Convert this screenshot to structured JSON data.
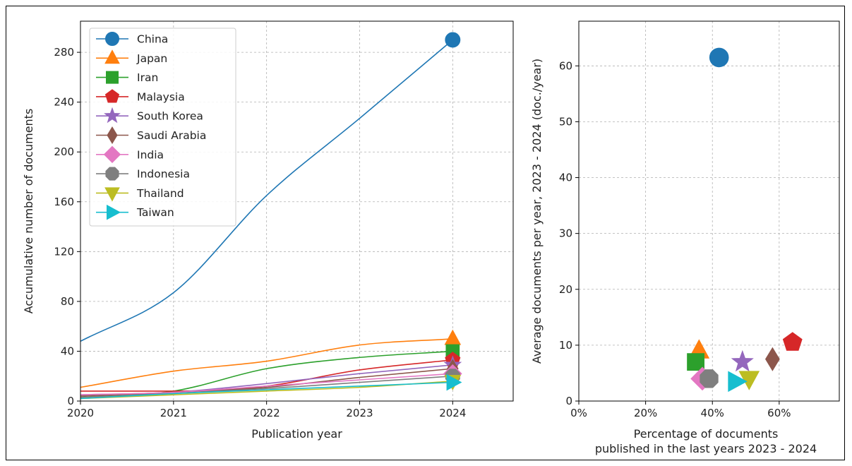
{
  "chart_data": [
    {
      "type": "line",
      "title": "",
      "xlabel": "Publication year",
      "ylabel": "Accumulative number of documents",
      "xlim": [
        2020,
        2024.65
      ],
      "ylim": [
        0,
        305
      ],
      "xticks": [
        2020,
        2021,
        2022,
        2023,
        2024
      ],
      "yticks": [
        0,
        40,
        80,
        120,
        160,
        200,
        240,
        280
      ],
      "grid": true,
      "legend_position": "top-left",
      "x": [
        2020,
        2021,
        2022,
        2023,
        2024
      ],
      "series": [
        {
          "name": "China",
          "color": "#1f77b4",
          "marker": "circle",
          "values": [
            48,
            87,
            165,
            227,
            290
          ]
        },
        {
          "name": "Japan",
          "color": "#ff7f0e",
          "marker": "triangle-up",
          "values": [
            11,
            24,
            32,
            45,
            50
          ]
        },
        {
          "name": "Iran",
          "color": "#2ca02c",
          "marker": "square",
          "values": [
            3,
            8,
            26,
            35,
            40
          ]
        },
        {
          "name": "Malaysia",
          "color": "#d62728",
          "marker": "pentagon",
          "values": [
            8,
            8,
            12,
            25,
            33
          ]
        },
        {
          "name": "South Korea",
          "color": "#9467bd",
          "marker": "star",
          "values": [
            5,
            7,
            14,
            22,
            29
          ]
        },
        {
          "name": "Saudi Arabia",
          "color": "#8c564b",
          "marker": "diamond",
          "values": [
            4,
            7,
            11,
            19,
            26
          ]
        },
        {
          "name": "India",
          "color": "#e377c2",
          "marker": "diamond-large",
          "values": [
            5,
            7,
            12,
            17,
            22
          ]
        },
        {
          "name": "Indonesia",
          "color": "#7f7f7f",
          "marker": "octagon",
          "values": [
            3,
            6,
            10,
            15,
            20
          ]
        },
        {
          "name": "Thailand",
          "color": "#bcbd22",
          "marker": "triangle-down",
          "values": [
            2,
            5,
            8,
            11,
            16
          ]
        },
        {
          "name": "Taiwan",
          "color": "#17becf",
          "marker": "triangle-right",
          "values": [
            2,
            6,
            9,
            12,
            15
          ]
        }
      ]
    },
    {
      "type": "scatter",
      "title": "",
      "xlabel": "Percentage of documents",
      "xlabel2": "published in the last years 2023 - 2024",
      "ylabel": "Average documents per year, 2023 - 2024 (doc./year)",
      "xlim": [
        0,
        0.78
      ],
      "ylim": [
        0,
        68
      ],
      "xticks": [
        0,
        0.2,
        0.4,
        0.6
      ],
      "xtick_labels": [
        "0%",
        "20%",
        "40%",
        "60%"
      ],
      "yticks": [
        0,
        10,
        20,
        30,
        40,
        50,
        60
      ],
      "grid": true,
      "points": [
        {
          "name": "China",
          "color": "#1f77b4",
          "marker": "circle",
          "x": 0.42,
          "y": 61.5
        },
        {
          "name": "Japan",
          "color": "#ff7f0e",
          "marker": "triangle-up",
          "x": 0.36,
          "y": 9.0
        },
        {
          "name": "Iran",
          "color": "#2ca02c",
          "marker": "square",
          "x": 0.35,
          "y": 7.0
        },
        {
          "name": "Malaysia",
          "color": "#d62728",
          "marker": "pentagon",
          "x": 0.64,
          "y": 10.5
        },
        {
          "name": "South Korea",
          "color": "#9467bd",
          "marker": "star",
          "x": 0.49,
          "y": 7.0
        },
        {
          "name": "Saudi Arabia",
          "color": "#8c564b",
          "marker": "diamond",
          "x": 0.58,
          "y": 7.5
        },
        {
          "name": "India",
          "color": "#e377c2",
          "marker": "diamond-large",
          "x": 0.37,
          "y": 4.0
        },
        {
          "name": "Indonesia",
          "color": "#7f7f7f",
          "marker": "octagon",
          "x": 0.39,
          "y": 4.0
        },
        {
          "name": "Thailand",
          "color": "#bcbd22",
          "marker": "triangle-down",
          "x": 0.51,
          "y": 4.0
        },
        {
          "name": "Taiwan",
          "color": "#17becf",
          "marker": "triangle-right",
          "x": 0.47,
          "y": 3.5
        }
      ]
    }
  ]
}
